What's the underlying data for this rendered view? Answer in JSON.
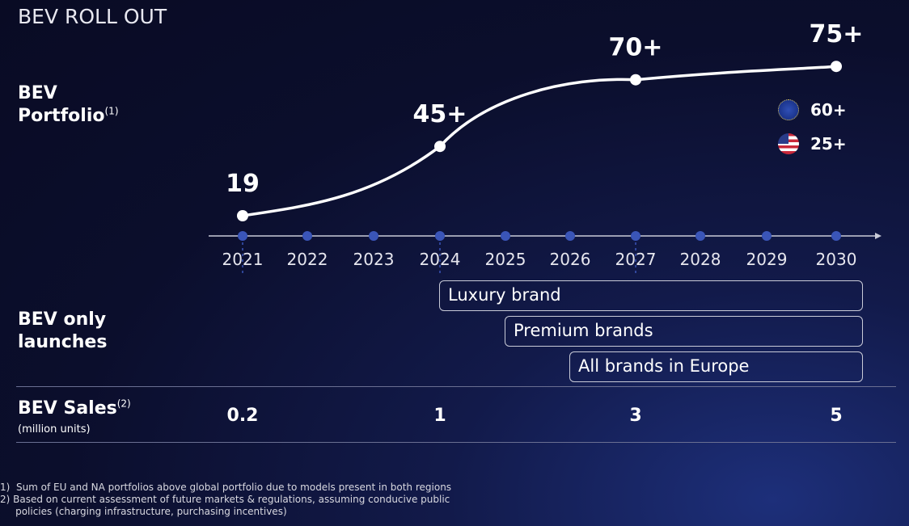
{
  "title": "BEV ROLL OUT",
  "labels": {
    "portfolio": "BEV",
    "portfolio2": "Portfolio",
    "portfolio_sup": "(1)",
    "launches1": "BEV only",
    "launches2": "launches",
    "sales": "BEV Sales",
    "sales_sup": "(2)",
    "sales_unit": "(million units)"
  },
  "legend": [
    {
      "region": "EU",
      "icon": "eu-flag-icon",
      "value": "60+"
    },
    {
      "region": "US",
      "icon": "us-flag-icon",
      "value": "25+"
    }
  ],
  "launches": [
    "Luxury brand",
    "Premium brands",
    "All brands in Europe"
  ],
  "sales": [
    {
      "year": "2021",
      "value": "0.2"
    },
    {
      "year": "2024",
      "value": "1"
    },
    {
      "year": "2027",
      "value": "3"
    },
    {
      "year": "2030",
      "value": "5"
    }
  ],
  "footnotes": [
    "1)  Sum of EU and NA portfolios above global portfolio due to models present in both regions",
    "2) Based on current assessment of future markets & regulations, assuming conducive public",
    "     policies (charging infrastructure, purchasing incentives)"
  ],
  "chart_data": {
    "type": "line",
    "title": "BEV Portfolio",
    "categories": [
      "2021",
      "2022",
      "2023",
      "2024",
      "2025",
      "2026",
      "2027",
      "2028",
      "2029",
      "2030"
    ],
    "points": [
      {
        "x": "2021",
        "y": 19,
        "label": "19"
      },
      {
        "x": "2024",
        "y": 45,
        "label": "45+"
      },
      {
        "x": "2027",
        "y": 70,
        "label": "70+"
      },
      {
        "x": "2030",
        "y": 75,
        "label": "75+"
      }
    ],
    "colors": {
      "line": "#ffffff",
      "axis_dot": "#3a55b8"
    }
  }
}
